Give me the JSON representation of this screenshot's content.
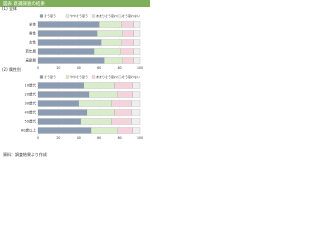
{
  "header": "図表 意識調査の結果",
  "note": "資料：調査結果より作成",
  "chart_data": [
    {
      "type": "bar",
      "orientation": "horizontal",
      "stacked": true,
      "title": "(1) 全体",
      "categories": [
        "全体",
        "男性",
        "女性",
        "若年層",
        "高齢層"
      ],
      "series": [
        {
          "name": "そう思う",
          "color": "#8c9cb2",
          "values": [
            60,
            58,
            62,
            55,
            65
          ]
        },
        {
          "name": "ややそう思う",
          "color": "#d9eccb",
          "values": [
            22,
            25,
            20,
            26,
            18
          ]
        },
        {
          "name": "あまりそう思わない",
          "color": "#f5d3dc",
          "values": [
            12,
            11,
            12,
            13,
            11
          ]
        },
        {
          "name": "そう思わない",
          "color": "#eeeeee",
          "values": [
            6,
            6,
            6,
            6,
            6
          ]
        }
      ],
      "xlim": [
        0,
        100
      ],
      "xticks": [
        0,
        20,
        40,
        60,
        80,
        100
      ]
    },
    {
      "type": "bar",
      "orientation": "horizontal",
      "stacked": true,
      "title": "(2) 属性別",
      "categories": [
        "10歳代",
        "20歳代",
        "30歳代",
        "40歳代",
        "50歳代",
        "60歳以上"
      ],
      "series": [
        {
          "name": "そう思う",
          "color": "#8c9cb2",
          "values": [
            45,
            50,
            40,
            48,
            42,
            52
          ]
        },
        {
          "name": "ややそう思う",
          "color": "#d9eccb",
          "values": [
            30,
            28,
            32,
            27,
            30,
            26
          ]
        },
        {
          "name": "あまりそう思わない",
          "color": "#f5d3dc",
          "values": [
            18,
            15,
            20,
            17,
            20,
            15
          ]
        },
        {
          "name": "そう思わない",
          "color": "#eeeeee",
          "values": [
            7,
            7,
            8,
            8,
            8,
            7
          ]
        }
      ],
      "xlim": [
        0,
        100
      ],
      "xticks": [
        0,
        20,
        40,
        60,
        80,
        100
      ]
    }
  ]
}
